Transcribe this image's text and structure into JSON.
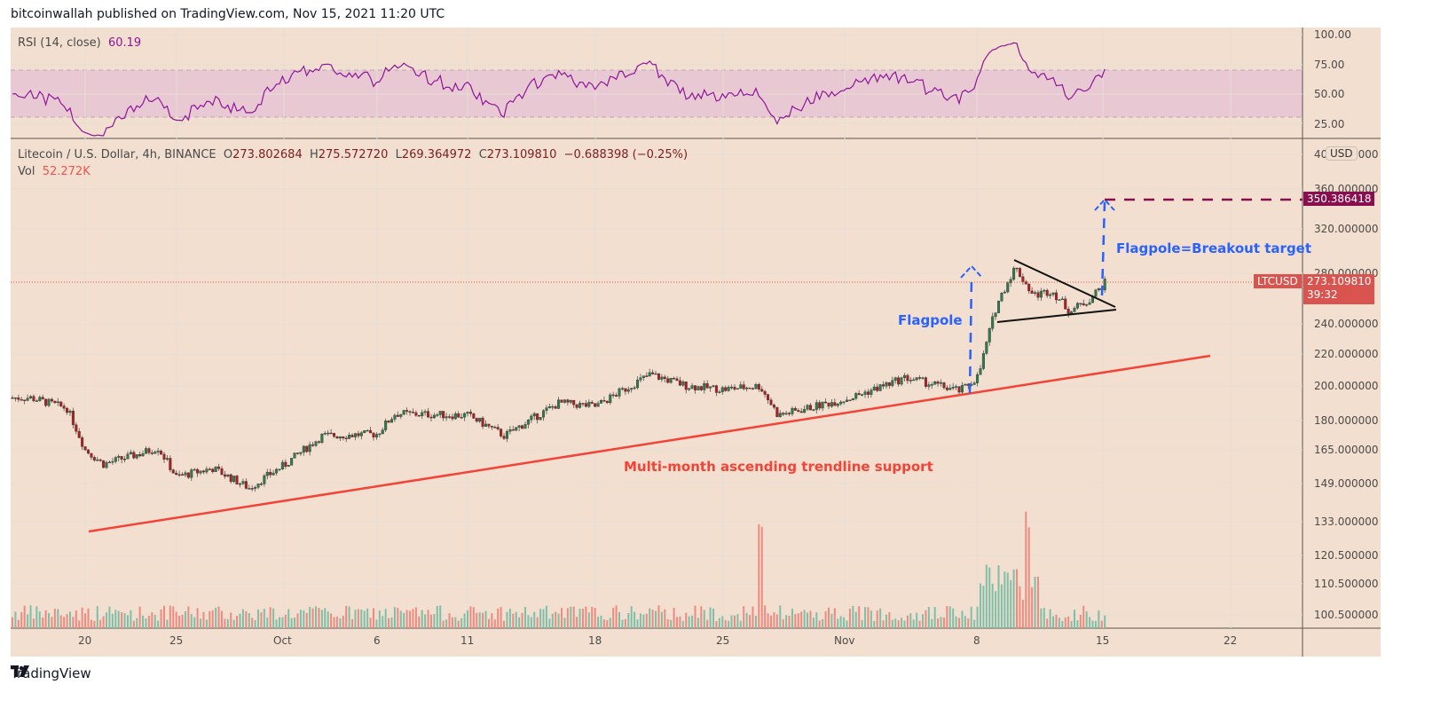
{
  "header": {
    "text": "bitcoinwallah published on TradingView.com, Nov 15, 2021 11:20 UTC"
  },
  "rsi": {
    "label": "RSI (14, close)",
    "value": "60.19",
    "axis_ticks": [
      "100.00",
      "75.00",
      "50.00",
      "25.00"
    ]
  },
  "main": {
    "symbol_title": "Litecoin / U.S. Dollar, 4h, BINANCE",
    "open_label": "O",
    "open": "273.802684",
    "high_label": "H",
    "high": "275.572720",
    "low_label": "L",
    "low": "269.364972",
    "close_label": "C",
    "close": "273.109810",
    "change": "−0.688398 (−0.25%)",
    "vol_label": "Vol",
    "vol_value": "52.272K",
    "currency_badge": "USD",
    "price_ticks": [
      "400.000000",
      "360.000000",
      "320.000000",
      "280.000000",
      "240.000000",
      "220.000000",
      "200.000000",
      "180.000000",
      "165.000000",
      "149.000000",
      "133.000000",
      "120.500000",
      "110.500000",
      "100.500000"
    ],
    "target_tag": "350.386418",
    "symbol_tag": "LTCUSD",
    "last_price_tag": "273.109810",
    "countdown": "39:32"
  },
  "annotations": {
    "flagpole": "Flagpole",
    "breakout_target": "Flagpole=Breakout target",
    "trendline": "Multi-month ascending trendline support"
  },
  "time_axis": [
    "20",
    "25",
    "Oct",
    "6",
    "11",
    "18",
    "25",
    "Nov",
    "8",
    "15",
    "22"
  ],
  "footer": {
    "brand": "TradingView"
  },
  "colors": {
    "background": "#f2dfcf",
    "up_candle": "#2e7d4f",
    "down_candle": "#b71c1c",
    "rsi_line": "#8e1599",
    "rsi_band": "#e8c8d2",
    "trendline": "#f44336",
    "flagpole": "#2962ff",
    "target_line": "#880e4f",
    "last_price": "#d9534f",
    "vol_up": "#7fbfa8",
    "vol_down": "#ef8a80"
  },
  "chart_data": {
    "type": "candlestick",
    "title": "Litecoin / U.S. Dollar, 4h, BINANCE",
    "x_ticks": [
      "20",
      "25",
      "Oct",
      "6",
      "11",
      "18",
      "25",
      "Nov",
      "8",
      "15",
      "22"
    ],
    "y_scale": "log",
    "ylim": [
      100.5,
      400
    ],
    "y_ticks": [
      400,
      360,
      320,
      280,
      240,
      220,
      200,
      180,
      165,
      149,
      133,
      120.5,
      110.5,
      100.5
    ],
    "ohlc_last": {
      "open": 273.802684,
      "high": 275.57272,
      "low": 269.364972,
      "close": 273.10981,
      "change": -0.688398,
      "change_pct": -0.25
    },
    "approx_close_path": [
      {
        "x": "Sep 17",
        "y": 193
      },
      {
        "x": "Sep 19",
        "y": 187
      },
      {
        "x": "Sep 20",
        "y": 165
      },
      {
        "x": "Sep 21",
        "y": 158
      },
      {
        "x": "Sep 23",
        "y": 163
      },
      {
        "x": "Sep 24",
        "y": 166
      },
      {
        "x": "Sep 25",
        "y": 152
      },
      {
        "x": "Sep 27",
        "y": 156
      },
      {
        "x": "Sep 29",
        "y": 147
      },
      {
        "x": "Oct 1",
        "y": 158
      },
      {
        "x": "Oct 3",
        "y": 172
      },
      {
        "x": "Oct 6",
        "y": 173
      },
      {
        "x": "Oct 7",
        "y": 184
      },
      {
        "x": "Oct 11",
        "y": 183
      },
      {
        "x": "Oct 13",
        "y": 172
      },
      {
        "x": "Oct 16",
        "y": 190
      },
      {
        "x": "Oct 18",
        "y": 188
      },
      {
        "x": "Oct 21",
        "y": 207
      },
      {
        "x": "Oct 23",
        "y": 200
      },
      {
        "x": "Oct 25",
        "y": 198
      },
      {
        "x": "Oct 27",
        "y": 200
      },
      {
        "x": "Oct 28",
        "y": 183
      },
      {
        "x": "Nov 1",
        "y": 193
      },
      {
        "x": "Nov 4",
        "y": 205
      },
      {
        "x": "Nov 7",
        "y": 197
      },
      {
        "x": "Nov 8",
        "y": 206
      },
      {
        "x": "Nov 9",
        "y": 255
      },
      {
        "x": "Nov 10",
        "y": 285
      },
      {
        "x": "Nov 11",
        "y": 262
      },
      {
        "x": "Nov 12",
        "y": 266
      },
      {
        "x": "Nov 13",
        "y": 250
      },
      {
        "x": "Nov 14",
        "y": 258
      },
      {
        "x": "Nov 15",
        "y": 273.11
      }
    ],
    "rsi": {
      "label": "RSI (14, close)",
      "current": 60.19,
      "ylim": [
        0,
        100
      ],
      "bands": [
        30,
        70
      ],
      "y_ticks": [
        100,
        75,
        50,
        25
      ]
    },
    "volume": {
      "label": "Vol",
      "current": "52.272K"
    },
    "annotations": [
      {
        "type": "trendline",
        "label": "Multi-month ascending trendline support",
        "from": {
          "x": "Sep 20",
          "y": 128
        },
        "to": {
          "x": "Nov 19",
          "y": 218
        }
      },
      {
        "type": "arrow",
        "label": "Flagpole",
        "from": {
          "x": "Nov 7",
          "y": 197
        },
        "to": {
          "x": "Nov 7",
          "y": 290
        }
      },
      {
        "type": "arrow",
        "label": "Flagpole=Breakout target",
        "from": {
          "x": "Nov 15",
          "y": 262
        },
        "to": {
          "x": "Nov 15",
          "y": 350.39
        }
      },
      {
        "type": "horizontal",
        "label": "target",
        "y": 350.386418
      },
      {
        "type": "triangle",
        "upper": {
          "from": {
            "x": "Nov 10",
            "y": 290
          },
          "to": {
            "x": "Nov 15",
            "y": 257
          }
        },
        "lower": {
          "from": {
            "x": "Nov 9",
            "y": 241
          },
          "to": {
            "x": "Nov 15",
            "y": 252
          }
        }
      }
    ]
  }
}
